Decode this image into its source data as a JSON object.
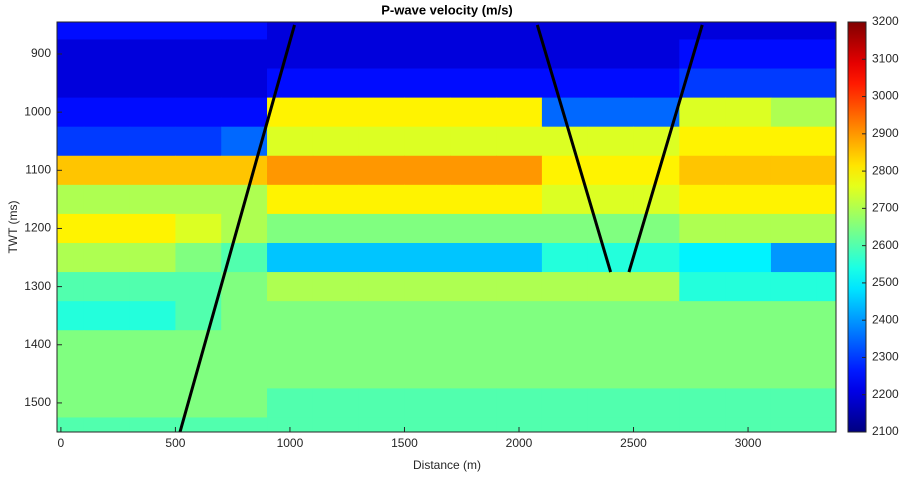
{
  "chart_data": {
    "type": "heatmap",
    "title": "P-wave velocity (m/s)",
    "xlabel": "Distance (m)",
    "ylabel": "TWT (ms)",
    "x": [
      0,
      200,
      400,
      600,
      800,
      1000,
      1200,
      1400,
      1600,
      1800,
      2000,
      2200,
      2400,
      2600,
      2800,
      3000,
      3200,
      3400
    ],
    "y": [
      850,
      900,
      950,
      1000,
      1050,
      1100,
      1150,
      1200,
      1250,
      1300,
      1350,
      1400,
      1450,
      1500,
      1550
    ],
    "z": [
      [
        2250,
        2250,
        2250,
        2250,
        2250,
        2200,
        2200,
        2200,
        2200,
        2200,
        2200,
        2200,
        2200,
        2200,
        2200,
        2200,
        2200,
        2200
      ],
      [
        2200,
        2200,
        2200,
        2200,
        2200,
        2200,
        2200,
        2200,
        2200,
        2200,
        2200,
        2200,
        2200,
        2200,
        2250,
        2250,
        2250,
        2250
      ],
      [
        2200,
        2200,
        2200,
        2200,
        2200,
        2250,
        2250,
        2250,
        2250,
        2250,
        2250,
        2250,
        2250,
        2250,
        2300,
        2300,
        2300,
        2300
      ],
      [
        2250,
        2250,
        2250,
        2250,
        2250,
        2800,
        2800,
        2800,
        2800,
        2800,
        2800,
        2350,
        2350,
        2350,
        2750,
        2750,
        2700,
        2700
      ],
      [
        2300,
        2300,
        2300,
        2300,
        2350,
        2750,
        2750,
        2750,
        2750,
        2750,
        2750,
        2750,
        2750,
        2750,
        2800,
        2800,
        2800,
        2800
      ],
      [
        2850,
        2850,
        2850,
        2850,
        2850,
        2900,
        2900,
        2900,
        2900,
        2900,
        2900,
        2800,
        2800,
        2800,
        2850,
        2850,
        2850,
        2850
      ],
      [
        2700,
        2700,
        2700,
        2700,
        2700,
        2800,
        2800,
        2800,
        2800,
        2800,
        2800,
        2750,
        2750,
        2750,
        2800,
        2800,
        2800,
        2800
      ],
      [
        2800,
        2800,
        2800,
        2750,
        2700,
        2650,
        2650,
        2650,
        2650,
        2650,
        2650,
        2650,
        2650,
        2650,
        2700,
        2700,
        2700,
        2700
      ],
      [
        2700,
        2700,
        2700,
        2650,
        2600,
        2450,
        2450,
        2450,
        2450,
        2450,
        2450,
        2550,
        2550,
        2550,
        2500,
        2500,
        2400,
        2400
      ],
      [
        2600,
        2600,
        2600,
        2600,
        2650,
        2700,
        2700,
        2700,
        2700,
        2700,
        2700,
        2700,
        2700,
        2700,
        2550,
        2550,
        2550,
        2550
      ],
      [
        2550,
        2550,
        2550,
        2600,
        2650,
        2650,
        2650,
        2650,
        2650,
        2650,
        2650,
        2650,
        2650,
        2650,
        2650,
        2650,
        2650,
        2650
      ],
      [
        2650,
        2650,
        2650,
        2650,
        2650,
        2650,
        2650,
        2650,
        2650,
        2650,
        2650,
        2650,
        2650,
        2650,
        2650,
        2650,
        2650,
        2650
      ],
      [
        2650,
        2650,
        2650,
        2650,
        2650,
        2650,
        2650,
        2650,
        2650,
        2650,
        2650,
        2650,
        2650,
        2650,
        2650,
        2650,
        2650,
        2650
      ],
      [
        2650,
        2650,
        2650,
        2650,
        2650,
        2600,
        2600,
        2600,
        2600,
        2600,
        2600,
        2600,
        2600,
        2600,
        2600,
        2600,
        2600,
        2600
      ],
      [
        2600,
        2600,
        2600,
        2600,
        2600,
        2600,
        2600,
        2600,
        2600,
        2600,
        2600,
        2600,
        2600,
        2600,
        2600,
        2600,
        2600,
        2600
      ]
    ],
    "cell_width": 200,
    "cell_height": 50,
    "xlim": [
      -17,
      3384
    ],
    "xticks": [
      0,
      500,
      1000,
      1500,
      2000,
      2500,
      3000
    ],
    "ylim": [
      845,
      1550
    ],
    "yticks": [
      900,
      1000,
      1100,
      1200,
      1300,
      1400,
      1500
    ],
    "yreverse": true,
    "colormap": "jet",
    "clim": [
      2100,
      3200
    ],
    "cticks": [
      2100,
      2200,
      2300,
      2400,
      2500,
      2600,
      2700,
      2800,
      2900,
      3000,
      3100,
      3200
    ],
    "lines": [
      {
        "x": [
          520,
          1020
        ],
        "y": [
          1550,
          850
        ],
        "color": "#000000"
      },
      {
        "x": [
          2080,
          2400
        ],
        "y": [
          850,
          1275
        ],
        "color": "#000000"
      },
      {
        "x": [
          2480,
          2800
        ],
        "y": [
          1275,
          850
        ],
        "color": "#000000"
      }
    ]
  }
}
